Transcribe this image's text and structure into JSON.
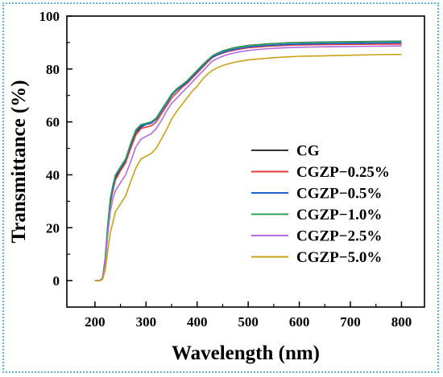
{
  "chart_data": {
    "type": "line",
    "title": "",
    "xlabel": "Wavelength (nm)",
    "ylabel": "Transmittance (%)",
    "xlim": [
      145,
      845
    ],
    "ylim": [
      -10,
      100
    ],
    "xticks": [
      200,
      300,
      400,
      500,
      600,
      700,
      800
    ],
    "yticks": [
      0,
      20,
      40,
      60,
      80,
      100
    ],
    "grid": false,
    "legend_position": "center-right",
    "series": [
      {
        "name": "CG",
        "color": "#333333",
        "x": [
          200,
          210,
          215,
          220,
          225,
          230,
          235,
          240,
          250,
          260,
          270,
          280,
          290,
          300,
          310,
          320,
          330,
          340,
          350,
          360,
          370,
          380,
          390,
          400,
          410,
          420,
          430,
          440,
          450,
          460,
          470,
          480,
          490,
          500,
          520,
          540,
          560,
          580,
          600,
          650,
          700,
          750,
          800
        ],
        "y": [
          0,
          0,
          1,
          8,
          20,
          30,
          35,
          39,
          42,
          45,
          51,
          56,
          58,
          59,
          59.5,
          61,
          64,
          67,
          70,
          72,
          73.5,
          75,
          77,
          79,
          81,
          83,
          85,
          86,
          86.8,
          87.4,
          87.9,
          88.3,
          88.6,
          88.9,
          89.2,
          89.5,
          89.7,
          89.9,
          90,
          90.2,
          90.3,
          90.4,
          90.5
        ]
      },
      {
        "name": "CGZP−0.25%",
        "color": "#e53935",
        "x": [
          200,
          210,
          215,
          220,
          225,
          230,
          235,
          240,
          250,
          260,
          270,
          280,
          290,
          300,
          310,
          320,
          330,
          340,
          350,
          360,
          370,
          380,
          390,
          400,
          410,
          420,
          430,
          440,
          450,
          460,
          470,
          480,
          490,
          500,
          520,
          540,
          560,
          580,
          600,
          650,
          700,
          750,
          800
        ],
        "y": [
          0,
          0,
          1,
          7.5,
          19,
          29,
          34,
          38,
          41.5,
          44.5,
          50,
          55,
          57.5,
          58,
          58.5,
          60,
          63,
          66,
          69,
          71,
          73,
          74.5,
          76.5,
          78.5,
          80.5,
          82.5,
          84.3,
          85.3,
          86,
          86.6,
          87,
          87.4,
          87.7,
          88,
          88.3,
          88.6,
          88.8,
          89,
          89.1,
          89.2,
          89.3,
          89.4,
          89.4
        ]
      },
      {
        "name": "CGZP−0.5%",
        "color": "#1f5fd1",
        "x": [
          200,
          210,
          215,
          220,
          225,
          230,
          235,
          240,
          250,
          260,
          270,
          280,
          290,
          300,
          310,
          320,
          330,
          340,
          350,
          360,
          370,
          380,
          390,
          400,
          410,
          420,
          430,
          440,
          450,
          460,
          470,
          480,
          490,
          500,
          520,
          540,
          560,
          580,
          600,
          650,
          700,
          750,
          800
        ],
        "y": [
          0,
          0,
          1,
          8,
          20,
          30,
          35,
          39.5,
          42.5,
          45.5,
          51.5,
          56.5,
          58.5,
          59,
          59.5,
          61,
          64,
          67,
          70,
          72,
          73.5,
          75,
          77,
          79,
          81,
          83,
          84.5,
          85.5,
          86.2,
          86.8,
          87.3,
          87.7,
          88,
          88.3,
          88.6,
          88.9,
          89.1,
          89.3,
          89.4,
          89.6,
          89.7,
          89.8,
          89.9
        ]
      },
      {
        "name": "CGZP−1.0%",
        "color": "#2ca05a",
        "x": [
          200,
          210,
          215,
          220,
          225,
          230,
          235,
          240,
          250,
          260,
          270,
          280,
          290,
          300,
          310,
          320,
          330,
          340,
          350,
          360,
          370,
          380,
          390,
          400,
          410,
          420,
          430,
          440,
          450,
          460,
          470,
          480,
          490,
          500,
          520,
          540,
          560,
          580,
          600,
          650,
          700,
          750,
          800
        ],
        "y": [
          0,
          0,
          1,
          8.5,
          21,
          31,
          36,
          40,
          43,
          46,
          52,
          57,
          59,
          59.5,
          60,
          61.5,
          64.5,
          67.5,
          70.5,
          72.5,
          74,
          75.5,
          77.5,
          79.5,
          81.5,
          83.3,
          85,
          86,
          86.7,
          87.3,
          87.8,
          88.2,
          88.5,
          88.8,
          89.1,
          89.4,
          89.6,
          89.8,
          89.9,
          90.1,
          90.2,
          90.3,
          90.4
        ]
      },
      {
        "name": "CGZP−2.5%",
        "color": "#b36be0",
        "x": [
          200,
          210,
          215,
          220,
          225,
          230,
          235,
          240,
          250,
          260,
          270,
          280,
          290,
          300,
          310,
          320,
          330,
          340,
          350,
          360,
          370,
          380,
          390,
          400,
          410,
          420,
          430,
          440,
          450,
          460,
          470,
          480,
          490,
          500,
          520,
          540,
          560,
          580,
          600,
          650,
          700,
          750,
          800
        ],
        "y": [
          0,
          0,
          0.8,
          6.5,
          17,
          26,
          31,
          34,
          37,
          40,
          45,
          50.5,
          53.5,
          54.5,
          55.5,
          57.5,
          60.5,
          64,
          67,
          69,
          71,
          73,
          75,
          77,
          79,
          81,
          83,
          84,
          84.8,
          85.5,
          86,
          86.4,
          86.7,
          87,
          87.4,
          87.7,
          87.9,
          88.1,
          88.2,
          88.4,
          88.5,
          88.6,
          88.7
        ]
      },
      {
        "name": "CGZP−5.0%",
        "color": "#c9a219",
        "x": [
          200,
          210,
          215,
          220,
          225,
          230,
          235,
          240,
          250,
          260,
          270,
          280,
          290,
          300,
          310,
          320,
          330,
          340,
          350,
          360,
          370,
          380,
          390,
          400,
          410,
          420,
          430,
          440,
          450,
          460,
          470,
          480,
          490,
          500,
          520,
          540,
          560,
          580,
          600,
          650,
          700,
          750,
          800
        ],
        "y": [
          0,
          0,
          0.5,
          4,
          11,
          18,
          22,
          26,
          29,
          32,
          37.5,
          42.5,
          46,
          47,
          48,
          50,
          53.5,
          57,
          61,
          64,
          66.5,
          69,
          71.5,
          73.5,
          76,
          78,
          79.5,
          80.5,
          81.3,
          81.9,
          82.4,
          82.8,
          83.1,
          83.4,
          83.8,
          84.1,
          84.4,
          84.6,
          84.8,
          85,
          85.2,
          85.4,
          85.5
        ]
      }
    ]
  }
}
